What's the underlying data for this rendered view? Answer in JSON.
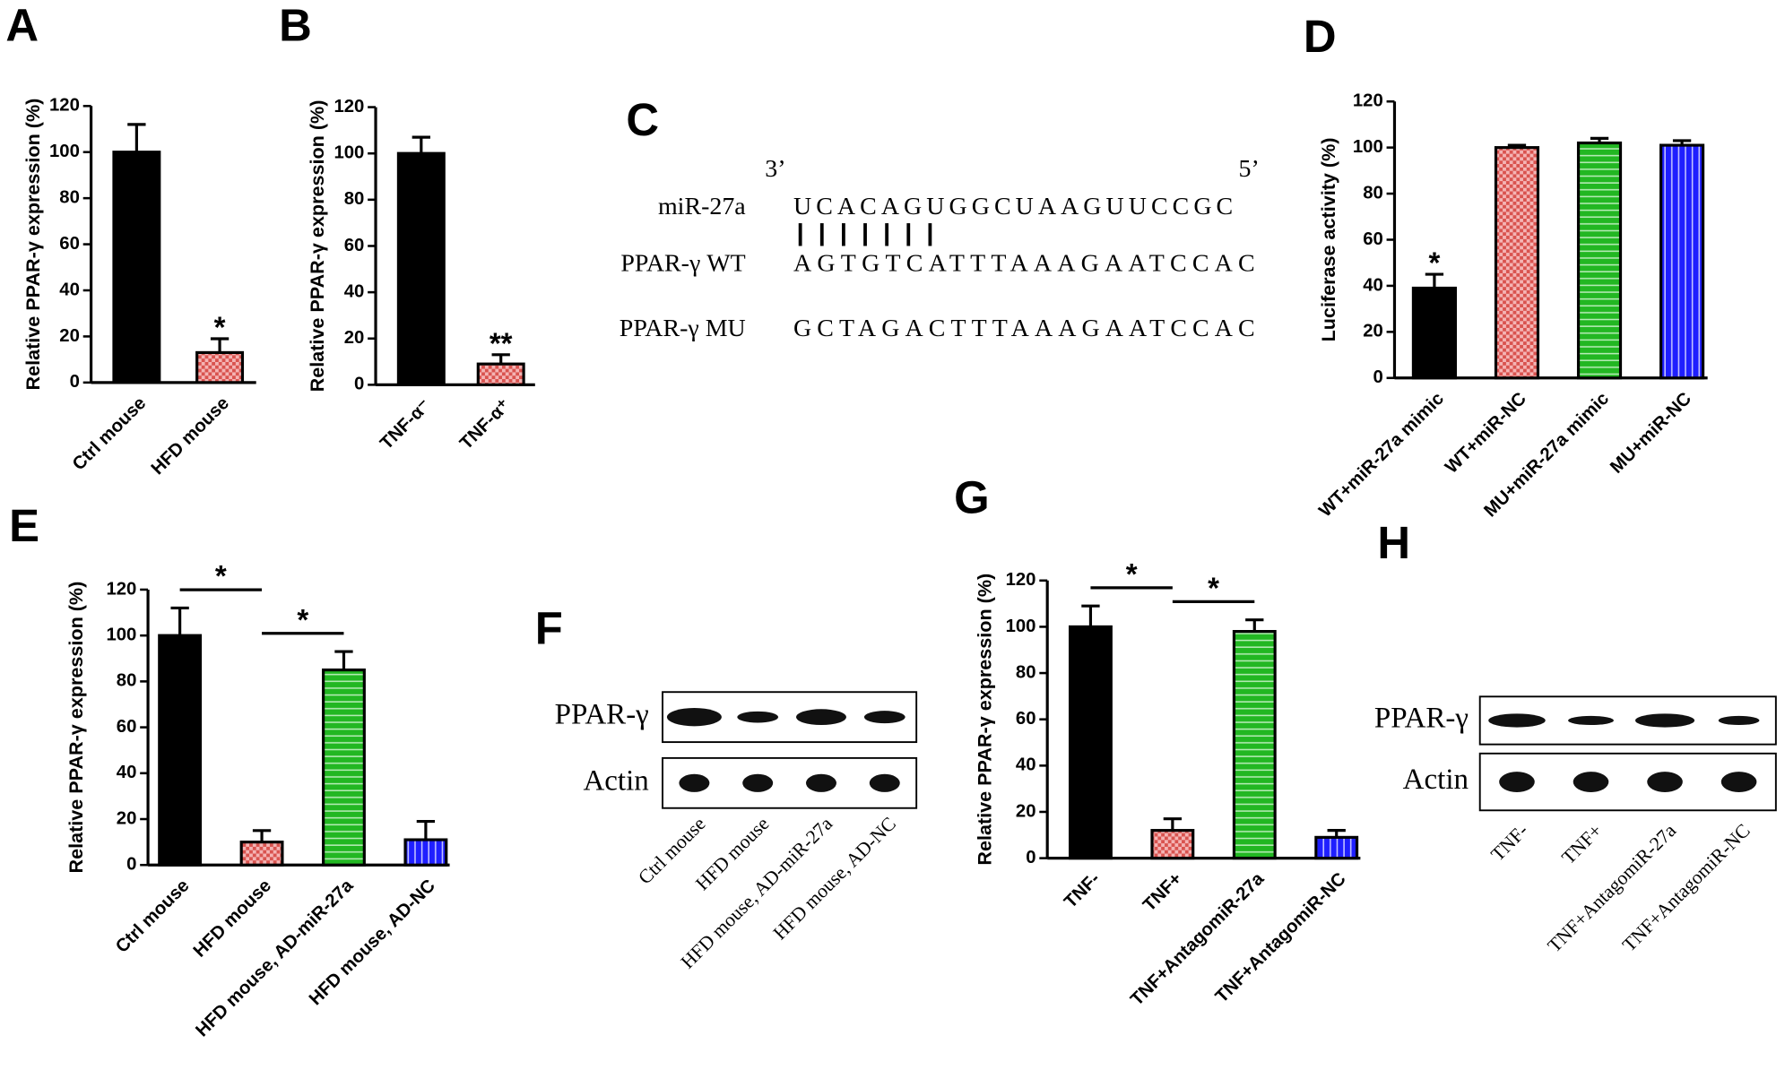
{
  "chart_data": [
    {
      "type": "bar",
      "panel_label": "A",
      "y_label": "Relative PPAR-γ expression (%)",
      "categories": [
        "Ctrl mouse",
        "HFD mouse"
      ],
      "values": [
        100,
        13
      ],
      "errors": [
        12,
        6
      ],
      "colors": [
        "#000000",
        "#d9534f"
      ],
      "patterns": [
        "solid",
        "checker"
      ],
      "annotations": [
        null,
        "*"
      ],
      "ylim": [
        0,
        120
      ],
      "yticks": [
        0,
        20,
        40,
        60,
        80,
        100,
        120
      ]
    },
    {
      "type": "bar",
      "panel_label": "B",
      "y_label": "Relative PPAR-γ expression (%)",
      "categories": [
        "TNF-α⁻",
        "TNF-α⁺"
      ],
      "values": [
        100,
        9
      ],
      "errors": [
        7,
        4
      ],
      "colors": [
        "#000000",
        "#d9534f"
      ],
      "patterns": [
        "solid",
        "checker"
      ],
      "annotations": [
        null,
        "**"
      ],
      "ylim": [
        0,
        120
      ],
      "yticks": [
        0,
        20,
        40,
        60,
        80,
        100,
        120
      ]
    },
    {
      "type": "bar",
      "panel_label": "D",
      "y_label": "Luciferase activity (%)",
      "categories": [
        "WT+miR-27a mimic",
        "WT+miR-NC",
        "MU+miR-27a mimic",
        "MU+miR-NC"
      ],
      "values": [
        39,
        100,
        102,
        101
      ],
      "errors": [
        6,
        1,
        2,
        2
      ],
      "colors": [
        "#000000",
        "#d9534f",
        "#22b722",
        "#1f1fff"
      ],
      "patterns": [
        "solid",
        "checker",
        "hstripe",
        "vstripe"
      ],
      "annotations": [
        "*",
        null,
        null,
        null
      ],
      "ylim": [
        0,
        120
      ],
      "yticks": [
        0,
        20,
        40,
        60,
        80,
        100,
        120
      ]
    },
    {
      "type": "bar",
      "panel_label": "E",
      "y_label": "Relative PPAR-γ expression (%)",
      "categories": [
        "Ctrl mouse",
        "HFD mouse",
        "HFD mouse, AD-miR-27a",
        "HFD mouse, AD-NC"
      ],
      "values": [
        100,
        10,
        85,
        11
      ],
      "errors": [
        12,
        5,
        8,
        8
      ],
      "colors": [
        "#000000",
        "#d9534f",
        "#22b722",
        "#1f1fff"
      ],
      "patterns": [
        "solid",
        "checker",
        "hstripe",
        "vstripe"
      ],
      "brackets": [
        {
          "from": "Ctrl mouse",
          "to": "HFD mouse",
          "text": "*"
        },
        {
          "from": "HFD mouse",
          "to": "HFD mouse, AD-miR-27a",
          "text": "*"
        }
      ],
      "ylim": [
        0,
        120
      ],
      "yticks": [
        0,
        20,
        40,
        60,
        80,
        100,
        120
      ]
    },
    {
      "type": "bar",
      "panel_label": "G",
      "y_label": "Relative PPAR-γ expression (%)",
      "categories": [
        "TNF-",
        "TNF+",
        "TNF+AntagomiR-27a",
        "TNF+AntagomiR-NC"
      ],
      "values": [
        100,
        12,
        98,
        9
      ],
      "errors": [
        9,
        5,
        5,
        3
      ],
      "colors": [
        "#000000",
        "#d9534f",
        "#22b722",
        "#1f1fff"
      ],
      "patterns": [
        "solid",
        "checker",
        "hstripe",
        "vstripe"
      ],
      "brackets": [
        {
          "from": "TNF-",
          "to": "TNF+",
          "text": "*"
        },
        {
          "from": "TNF+",
          "to": "TNF+AntagomiR-27a",
          "text": "*"
        }
      ],
      "ylim": [
        0,
        120
      ],
      "yticks": [
        0,
        20,
        40,
        60,
        80,
        100,
        120
      ]
    }
  ],
  "sequence_panel": {
    "panel_label": "C",
    "left_end": "3’",
    "right_end": "5’",
    "rows": [
      {
        "name": "miR-27a",
        "sequence": "UCACAGUGGCUAAGUUCCGC"
      },
      {
        "name": "PPAR-γ WT",
        "sequence": "AGTGTCATTTAAAGAATCCAC"
      },
      {
        "name": "PPAR-γ MU",
        "sequence": "GCTAGACTTTAAAGAATCCAC"
      }
    ]
  },
  "blots": [
    {
      "panel_label": "F",
      "rows": [
        "PPAR-γ",
        "Actin"
      ],
      "lanes": [
        "Ctrl mouse",
        "HFD mouse",
        "HFD mouse, AD-miR-27a",
        "HFD mouse, AD-NC"
      ]
    },
    {
      "panel_label": "H",
      "rows": [
        "PPAR-γ",
        "Actin"
      ],
      "lanes": [
        "TNF-",
        "TNF+",
        "TNF+AntagomiR-27a",
        "TNF+AntagomiR-NC"
      ]
    }
  ]
}
